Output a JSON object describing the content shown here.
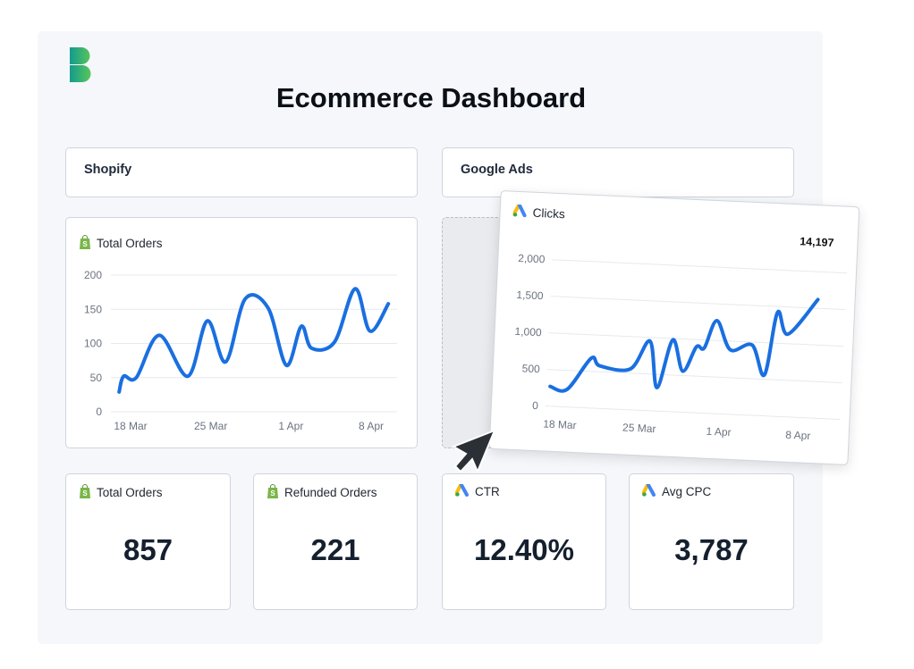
{
  "title": "Ecommerce Dashboard",
  "sections": {
    "shopify": "Shopify",
    "google_ads": "Google Ads"
  },
  "colors": {
    "line": "#1a6fe0",
    "shopify_green": "#7ab648",
    "panel": "#f5f7fa"
  },
  "orders_chart": {
    "title": "Total Orders",
    "icon": "shopify-bag-icon",
    "chart_data": {
      "type": "line",
      "ylim": [
        0,
        200
      ],
      "yticks": [
        "200",
        "150",
        "100",
        "50",
        "0"
      ],
      "ytick_values": [
        200,
        150,
        100,
        50,
        0
      ],
      "xticks": [
        "18 Mar",
        "25 Mar",
        "1 Apr",
        "8 Apr"
      ],
      "points": [
        [
          "17 Mar",
          29
        ],
        [
          "17.4 Mar",
          52
        ],
        [
          "18.5 Mar",
          50
        ],
        [
          "20.5 Mar",
          112
        ],
        [
          "23 Mar",
          52
        ],
        [
          "24.7 Mar",
          133
        ],
        [
          "26.3 Mar",
          73
        ],
        [
          "28 Mar",
          165
        ],
        [
          "30 Mar",
          152
        ],
        [
          "31.6 Mar",
          68
        ],
        [
          "1.9 Apr",
          125
        ],
        [
          "2.8 Apr",
          93
        ],
        [
          "4.8 Apr",
          102
        ],
        [
          "6.6 Apr",
          180
        ],
        [
          "7.9 Apr",
          118
        ],
        [
          "9.5 Apr",
          158
        ]
      ]
    }
  },
  "clicks_chart": {
    "title": "Clicks",
    "icon": "google-ads-icon",
    "total": "14,197",
    "chart_data": {
      "type": "line",
      "ylim": [
        0,
        2000
      ],
      "yticks": [
        "2,000",
        "1,500",
        "1,000",
        "500",
        "0"
      ],
      "ytick_values": [
        2000,
        1500,
        1000,
        500,
        0
      ],
      "xticks": [
        "18 Mar",
        "25 Mar",
        "1 Apr",
        "8 Apr"
      ],
      "points": [
        [
          "17 Mar",
          270
        ],
        [
          "18.5 Mar",
          240
        ],
        [
          "20.5 Mar",
          680
        ],
        [
          "21.3 Mar",
          580
        ],
        [
          "24 Mar",
          560
        ],
        [
          "25.6 Mar",
          950
        ],
        [
          "26.4 Mar",
          320
        ],
        [
          "27.6 Mar",
          980
        ],
        [
          "28.6 Mar",
          560
        ],
        [
          "29.7 Mar",
          900
        ],
        [
          "30.4 Mar",
          890
        ],
        [
          "31.4 Mar",
          1270
        ],
        [
          "1.7 Apr",
          880
        ],
        [
          "3.6 Apr",
          960
        ],
        [
          "4.8 Apr",
          560
        ],
        [
          "5.7 Apr",
          1420
        ],
        [
          "6.7 Apr",
          1130
        ],
        [
          "9.2 Apr",
          1620
        ]
      ]
    }
  },
  "kpis": [
    {
      "label": "Total Orders",
      "value": "857",
      "icon": "shopify-bag-icon"
    },
    {
      "label": "Refunded Orders",
      "value": "221",
      "icon": "shopify-bag-icon"
    },
    {
      "label": "CTR",
      "value": "12.40%",
      "icon": "google-ads-icon"
    },
    {
      "label": "Avg CPC",
      "value": "3,787",
      "icon": "google-ads-icon"
    }
  ]
}
